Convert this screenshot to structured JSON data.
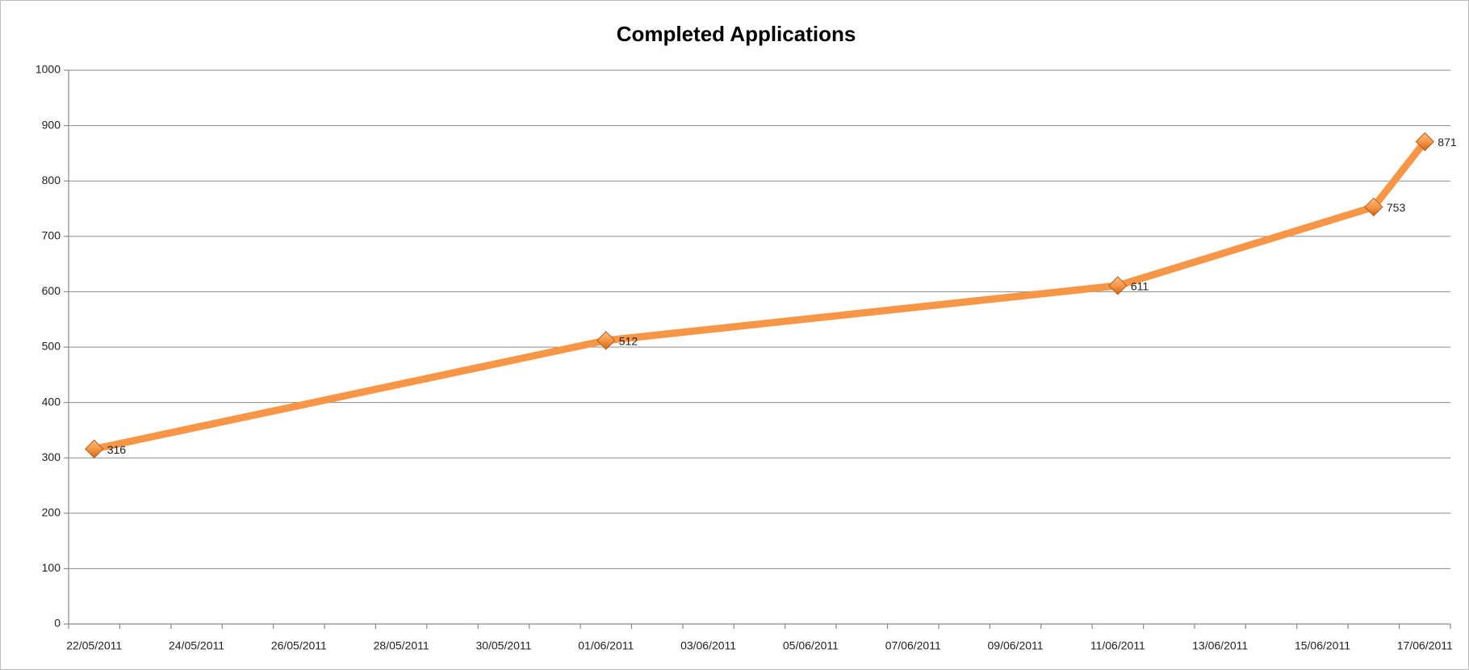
{
  "chart_data": {
    "type": "line",
    "title": "Completed Applications",
    "x": [
      "22/05/2011",
      "01/06/2011",
      "11/06/2011",
      "16/06/2011",
      "17/06/2011"
    ],
    "series": [
      {
        "name": "Completed Applications",
        "color": "#f79646",
        "values": [
          316,
          512,
          611,
          753,
          871
        ]
      }
    ],
    "xlim": [
      "22/05/2011",
      "17/06/2011"
    ],
    "xticks": [
      "22/05/2011",
      "24/05/2011",
      "26/05/2011",
      "28/05/2011",
      "30/05/2011",
      "01/06/2011",
      "03/06/2011",
      "05/06/2011",
      "07/06/2011",
      "09/06/2011",
      "11/06/2011",
      "13/06/2011",
      "15/06/2011",
      "17/06/2011"
    ],
    "ylim": [
      0,
      1000
    ],
    "yticks": [
      0,
      100,
      200,
      300,
      400,
      500,
      600,
      700,
      800,
      900,
      1000
    ],
    "grid": true
  }
}
